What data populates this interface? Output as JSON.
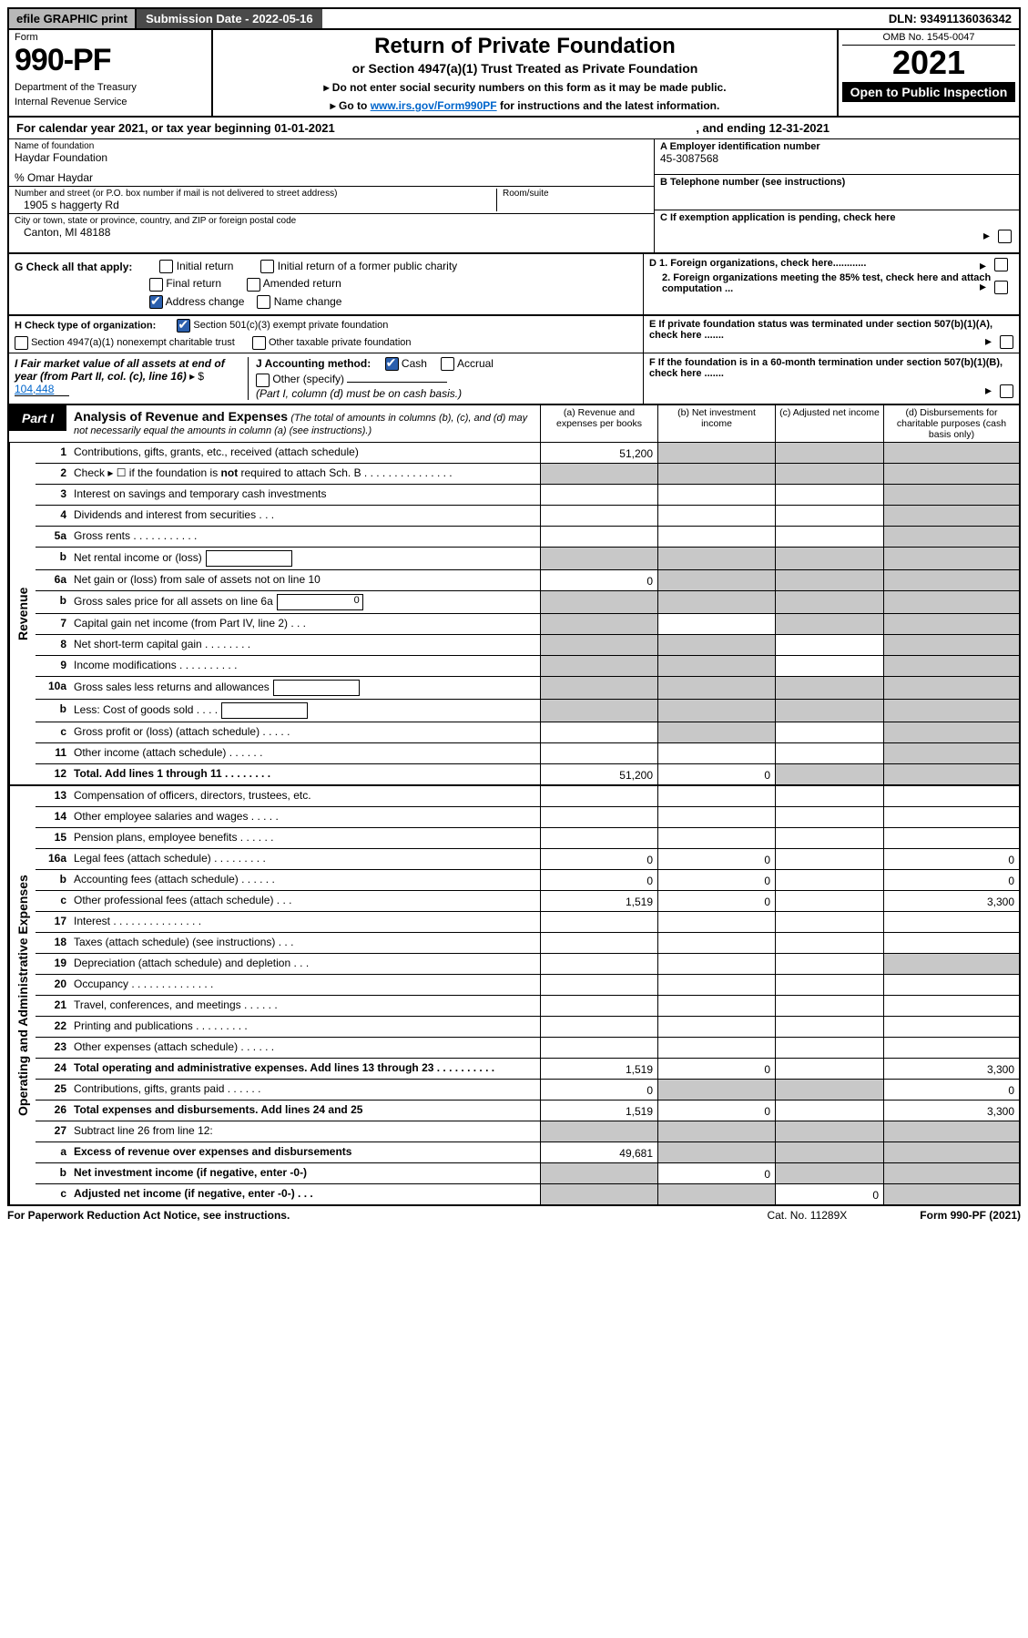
{
  "colors": {
    "topbar_gray": "#b8b8b8",
    "topbar_dark": "#4a4a4a",
    "black": "#000000",
    "white": "#ffffff",
    "link": "#0066cc",
    "shaded_cell": "#c8c8c8",
    "check_blue": "#2b5fad"
  },
  "topbar": {
    "efile": "efile GRAPHIC print",
    "submission": "Submission Date - 2022-05-16",
    "dln": "DLN: 93491136036342"
  },
  "header": {
    "form_label": "Form",
    "form_number": "990-PF",
    "dept": "Department of the Treasury",
    "irs": "Internal Revenue Service",
    "title": "Return of Private Foundation",
    "subtitle": "or Section 4947(a)(1) Trust Treated as Private Foundation",
    "instr1": "▸ Do not enter social security numbers on this form as it may be made public.",
    "instr2_pre": "▸ Go to ",
    "instr2_link": "www.irs.gov/Form990PF",
    "instr2_post": " for instructions and the latest information.",
    "omb": "OMB No. 1545-0047",
    "year": "2021",
    "open_public": "Open to Public Inspection"
  },
  "cal_year": {
    "text": "For calendar year 2021, or tax year beginning 01-01-2021",
    "ending": ", and ending 12-31-2021"
  },
  "entity": {
    "name_lbl": "Name of foundation",
    "name": "Haydar Foundation",
    "care_of": "% Omar Haydar",
    "addr_lbl": "Number and street (or P.O. box number if mail is not delivered to street address)",
    "addr": "1905 s haggerty Rd",
    "room_lbl": "Room/suite",
    "city_lbl": "City or town, state or province, country, and ZIP or foreign postal code",
    "city": "Canton, MI  48188",
    "ein_lbl": "A Employer identification number",
    "ein": "45-3087568",
    "tel_lbl": "B Telephone number (see instructions)",
    "c_lbl": "C If exemption application is pending, check here",
    "d1": "D 1. Foreign organizations, check here............",
    "d2": "2. Foreign organizations meeting the 85% test, check here and attach computation ...",
    "e_lbl": "E   If private foundation status was terminated under section 507(b)(1)(A), check here .......",
    "f_lbl": "F   If the foundation is in a 60-month termination under section 507(b)(1)(B), check here ......."
  },
  "g": {
    "label": "G Check all that apply:",
    "opts": [
      {
        "t": "Initial return",
        "c": false
      },
      {
        "t": "Initial return of a former public charity",
        "c": false
      },
      {
        "t": "Final return",
        "c": false
      },
      {
        "t": "Amended return",
        "c": false
      },
      {
        "t": "Address change",
        "c": true
      },
      {
        "t": "Name change",
        "c": false
      }
    ]
  },
  "h": {
    "label": "H Check type of organization:",
    "o1": "Section 501(c)(3) exempt private foundation",
    "c1": true,
    "o2": "Section 4947(a)(1) nonexempt charitable trust",
    "c2": false,
    "o3": "Other taxable private foundation",
    "c3": false
  },
  "i": {
    "label": "I Fair market value of all assets at end of year (from Part II, col. (c), line 16)",
    "prefix": "▸ $",
    "value": "104,448"
  },
  "j": {
    "label": "J Accounting method:",
    "cash": "Cash",
    "cash_c": true,
    "accrual": "Accrual",
    "accrual_c": false,
    "other": "Other (specify)",
    "note": "(Part I, column (d) must be on cash basis.)"
  },
  "part1": {
    "label": "Part I",
    "title": "Analysis of Revenue and Expenses",
    "note": "(The total of amounts in columns (b), (c), and (d) may not necessarily equal the amounts in column (a) (see instructions).)",
    "colA": "(a)   Revenue and expenses per books",
    "colB": "(b)   Net investment income",
    "colC": "(c)   Adjusted net income",
    "colD": "(d)  Disbursements for charitable purposes (cash basis only)"
  },
  "side_labels": {
    "revenue": "Revenue",
    "expenses": "Operating and Administrative Expenses"
  },
  "revenue_rows": [
    {
      "n": "1",
      "d": "Contributions, gifts, grants, etc., received (attach schedule)",
      "a": "51,200",
      "agray": false,
      "bgray": true,
      "cgray": true,
      "dgray": true
    },
    {
      "n": "2",
      "d": "Check ▸ ☐ if the foundation is not required to attach Sch. B   .   .   .   .   .   .   .   .   .   .   .   .   .   .   .",
      "blank": true
    },
    {
      "n": "3",
      "d": "Interest on savings and temporary cash investments",
      "a": "",
      "b": "",
      "c": "",
      "dgray": true
    },
    {
      "n": "4",
      "d": "Dividends and interest from securities    .    .    .",
      "a": "",
      "b": "",
      "c": "",
      "dgray": true
    },
    {
      "n": "5a",
      "d": "Gross rents    .    .    .    .    .    .    .    .    .    .    .",
      "a": "",
      "b": "",
      "c": "",
      "dgray": true
    },
    {
      "n": "b",
      "d": "Net rental income or (loss)",
      "inset": "",
      "bgray": true,
      "cgray": true,
      "dgray": true,
      "agray": true
    },
    {
      "n": "6a",
      "d": "Net gain or (loss) from sale of assets not on line 10",
      "a": "0",
      "bgray": true,
      "cgray": true,
      "dgray": true
    },
    {
      "n": "b",
      "d": "Gross sales price for all assets on line 6a",
      "inset": "0",
      "agray": true,
      "bgray": true,
      "cgray": true,
      "dgray": true
    },
    {
      "n": "7",
      "d": "Capital gain net income (from Part IV, line 2)    .    .    .",
      "agray": true,
      "b": "",
      "cgray": true,
      "dgray": true
    },
    {
      "n": "8",
      "d": "Net short-term capital gain  .   .   .   .   .   .   .   .",
      "agray": true,
      "bgray": true,
      "c": "",
      "dgray": true
    },
    {
      "n": "9",
      "d": "Income modifications  .   .   .   .   .   .   .   .   .   .",
      "agray": true,
      "bgray": true,
      "c": "",
      "dgray": true
    },
    {
      "n": "10a",
      "d": "Gross sales less returns and allowances",
      "inset": "",
      "agray": true,
      "bgray": true,
      "cgray": true,
      "dgray": true
    },
    {
      "n": "b",
      "d": "Less: Cost of goods sold     .    .    .    .",
      "inset": "",
      "agray": true,
      "bgray": true,
      "cgray": true,
      "dgray": true
    },
    {
      "n": "c",
      "d": "Gross profit or (loss) (attach schedule)    .    .    .    .    .",
      "a": "",
      "bgray": true,
      "c": "",
      "dgray": true
    },
    {
      "n": "11",
      "d": "Other income (attach schedule)    .    .    .    .    .    .",
      "a": "",
      "b": "",
      "c": "",
      "dgray": true
    },
    {
      "n": "12",
      "d": "Total. Add lines 1 through 11   .    .    .    .    .    .    .    .",
      "bold": true,
      "a": "51,200",
      "b": "0",
      "cgray": true,
      "dgray": true
    }
  ],
  "expense_rows": [
    {
      "n": "13",
      "d": "",
      "a": "",
      "b": "",
      "c": ""
    },
    {
      "n": "14",
      "d": "",
      "a": "",
      "b": "",
      "c": ""
    },
    {
      "n": "15",
      "d": "",
      "a": "",
      "b": "",
      "c": ""
    },
    {
      "n": "16a",
      "d": "0",
      "a": "0",
      "b": "0",
      "c": ""
    },
    {
      "n": "b",
      "d": "0",
      "a": "0",
      "b": "0",
      "c": ""
    },
    {
      "n": "c",
      "d": "3,300",
      "a": "1,519",
      "b": "0",
      "c": ""
    },
    {
      "n": "17",
      "d": "",
      "a": "",
      "b": "",
      "c": ""
    },
    {
      "n": "18",
      "d": "",
      "a": "",
      "b": "",
      "c": ""
    },
    {
      "n": "19",
      "d": "Depreciation (attach schedule) and depletion    .    .    .",
      "a": "",
      "b": "",
      "c": "",
      "dgray": true
    },
    {
      "n": "20",
      "d": "",
      "a": "",
      "b": "",
      "c": ""
    },
    {
      "n": "21",
      "d": "",
      "a": "",
      "b": "",
      "c": ""
    },
    {
      "n": "22",
      "d": "",
      "a": "",
      "b": "",
      "c": ""
    },
    {
      "n": "23",
      "d": "",
      "a": "",
      "b": "",
      "c": ""
    },
    {
      "n": "24",
      "d": "3,300",
      "bold": true,
      "a": "1,519",
      "b": "0",
      "c": ""
    },
    {
      "n": "25",
      "d": "0",
      "a": "0",
      "bgray": true,
      "cgray": true
    },
    {
      "n": "26",
      "d": "3,300",
      "bold": true,
      "a": "1,519",
      "b": "0",
      "c": ""
    },
    {
      "n": "27",
      "d": "Subtract line 26 from line 12:",
      "agray": true,
      "bgray": true,
      "cgray": true,
      "dgray": true
    },
    {
      "n": "a",
      "d": "Excess of revenue over expenses and disbursements",
      "bold": true,
      "a": "49,681",
      "bgray": true,
      "cgray": true,
      "dgray": true
    },
    {
      "n": "b",
      "d": "Net investment income (if negative, enter -0-)",
      "bold": true,
      "agray": true,
      "b": "0",
      "cgray": true,
      "dgray": true
    },
    {
      "n": "c",
      "d": "Adjusted net income (if negative, enter -0-)    .    .    .",
      "bold": true,
      "agray": true,
      "bgray": true,
      "c": "0",
      "dgray": true
    }
  ],
  "footer": {
    "left": "For Paperwork Reduction Act Notice, see instructions.",
    "cat": "Cat. No. 11289X",
    "form": "Form 990-PF (2021)"
  }
}
